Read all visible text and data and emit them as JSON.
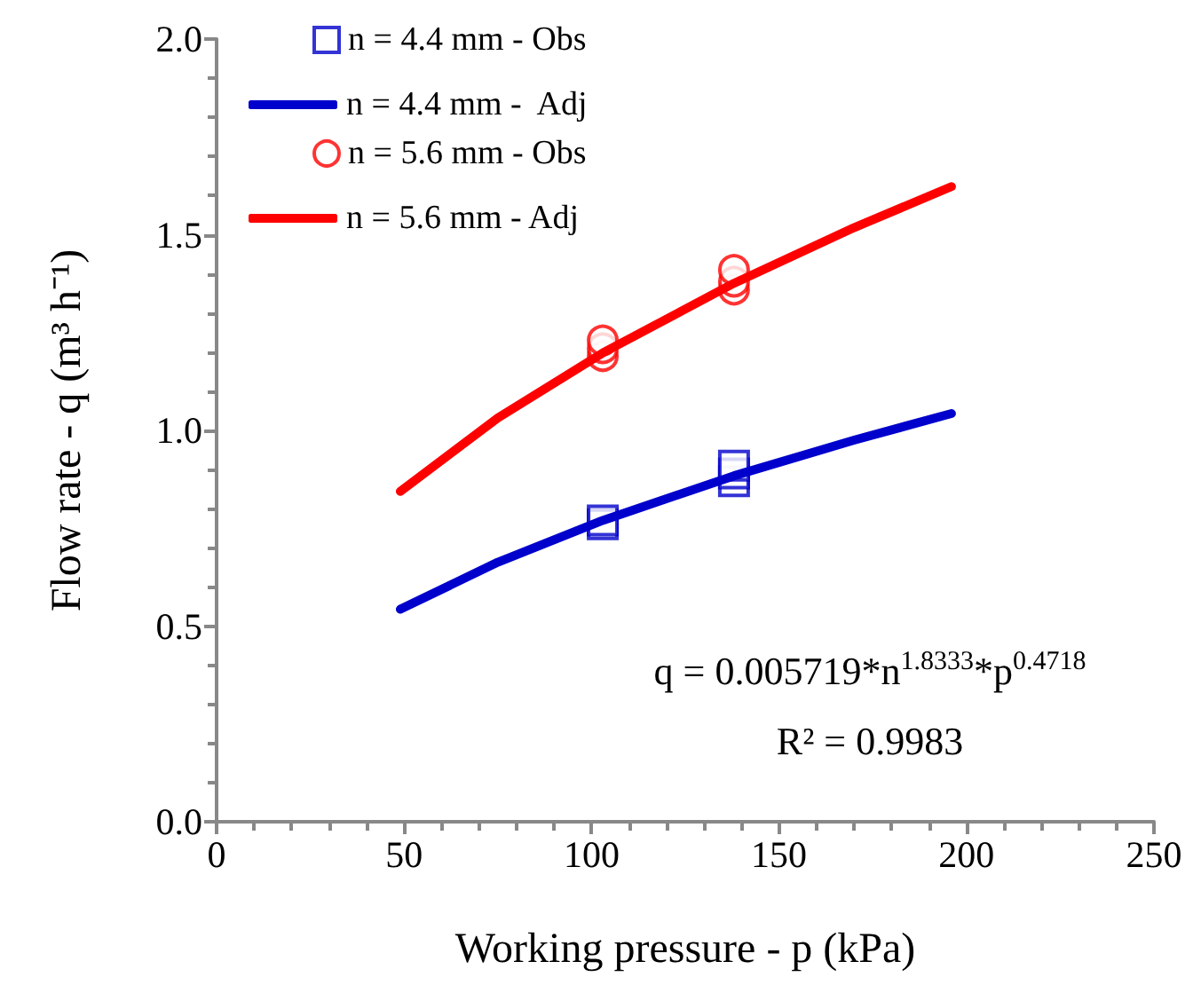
{
  "chart_data": {
    "type": "scatter",
    "xlabel": "Working pressure - p (kPa)",
    "ylabel": "Flow rate - q (m³ h⁻¹)",
    "xlim": [
      0,
      250
    ],
    "xticks": [
      0,
      50,
      100,
      150,
      200,
      250
    ],
    "ylim": [
      0,
      2.0
    ],
    "yticks": [
      {
        "value": 0,
        "label": "0.0"
      },
      {
        "value": 0.5,
        "label": "0.5"
      },
      {
        "value": 1.0,
        "label": "1.0"
      },
      {
        "value": 1.5,
        "label": "1.5"
      },
      {
        "value": 2.0,
        "label": "2.0"
      }
    ],
    "grid": false,
    "legend": "top left",
    "series": [
      {
        "name": "n = 4.4 mm - Obs",
        "marker": "square",
        "color": "#0000cc",
        "x": [
          103,
          103,
          138,
          138,
          138
        ],
        "values": [
          0.76,
          0.77,
          0.87,
          0.89,
          0.91
        ]
      },
      {
        "name": "n = 4.4 mm -  Adj",
        "type": "line",
        "marker": "none",
        "line_style": "solid",
        "color": "#0000cc",
        "x": [
          49,
          75,
          103,
          138,
          170,
          196
        ],
        "values": [
          0.543,
          0.663,
          0.77,
          0.884,
          0.975,
          1.043
        ]
      },
      {
        "name": "n = 5.6 mm - Obs",
        "marker": "circle",
        "color": "#ff0000",
        "x": [
          103,
          103,
          103,
          138,
          138,
          138
        ],
        "values": [
          1.19,
          1.21,
          1.23,
          1.36,
          1.38,
          1.41
        ]
      },
      {
        "name": "n = 5.6 mm - Adj",
        "type": "line",
        "marker": "none",
        "line_style": "solid",
        "color": "#ff0000",
        "x": [
          49,
          75,
          103,
          138,
          170,
          196
        ],
        "values": [
          0.844,
          1.032,
          1.198,
          1.376,
          1.518,
          1.623
        ]
      }
    ],
    "annotations": [
      "q = 0.005719*n$^{1.8333}$*p$^{0.4718}$",
      "R² = 0.9983"
    ]
  }
}
